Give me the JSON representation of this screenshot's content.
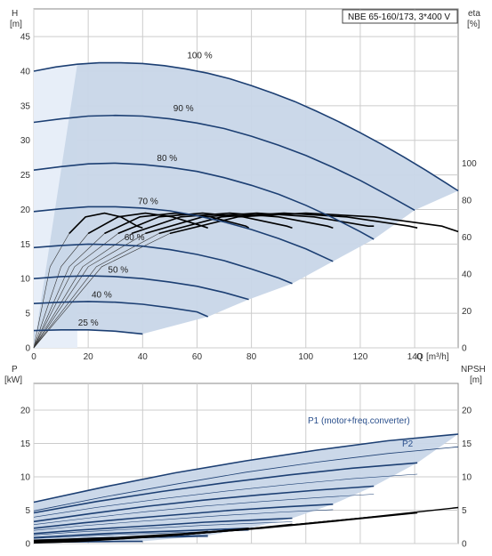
{
  "chart_data": [
    {
      "type": "line",
      "title": "NBE 65-160/173, 3*400 V",
      "ylabel": "H",
      "yunit": "[m]",
      "xlabel": "Q",
      "xunit": "[m³/h]",
      "y2label": "eta",
      "y2unit": "[%]",
      "xlim": [
        0,
        156
      ],
      "ylim": [
        0,
        49
      ],
      "y2lim": [
        0,
        183.75
      ],
      "xticks": [
        0,
        20,
        40,
        60,
        80,
        100,
        120,
        140
      ],
      "yticks": [
        0,
        5,
        10,
        15,
        20,
        25,
        30,
        35,
        40,
        45
      ],
      "y2ticks": [
        0,
        20,
        40,
        60,
        80,
        100
      ],
      "grid": true,
      "colors": {
        "curve": "#1c3f73",
        "region": "#c8d6e8",
        "region_light": "#e7eef8",
        "eta": "#000000",
        "grid": "#cccccc"
      },
      "series": [
        {
          "name": "100 %",
          "label_at": [
            61,
            41.5
          ],
          "x": [
            0,
            8,
            16,
            24,
            32,
            40,
            48,
            56,
            64,
            72,
            80,
            88,
            96,
            104,
            112,
            120,
            128,
            136,
            144,
            152,
            156
          ],
          "y": [
            40.0,
            40.6,
            41.0,
            41.2,
            41.2,
            41.1,
            40.8,
            40.3,
            39.7,
            38.9,
            37.9,
            36.8,
            35.6,
            34.2,
            32.7,
            31.1,
            29.4,
            27.6,
            25.7,
            23.7,
            22.7
          ]
        },
        {
          "name": "90 %",
          "label_at": [
            55,
            33.8
          ],
          "x": [
            0,
            10,
            20,
            30,
            40,
            50,
            60,
            70,
            80,
            90,
            100,
            110,
            120,
            130,
            140
          ],
          "y": [
            32.6,
            33.1,
            33.5,
            33.6,
            33.5,
            33.1,
            32.5,
            31.7,
            30.6,
            29.3,
            27.8,
            26.1,
            24.2,
            22.1,
            19.9
          ]
        },
        {
          "name": "80 %",
          "label_at": [
            49,
            26.6
          ],
          "x": [
            0,
            10,
            20,
            30,
            40,
            50,
            60,
            70,
            80,
            90,
            100,
            110,
            120,
            125
          ],
          "y": [
            25.7,
            26.2,
            26.6,
            26.7,
            26.5,
            26.1,
            25.5,
            24.6,
            23.5,
            22.2,
            20.6,
            18.8,
            16.8,
            15.7
          ]
        },
        {
          "name": "70 %",
          "label_at": [
            42,
            20.4
          ],
          "x": [
            0,
            10,
            20,
            30,
            40,
            50,
            60,
            70,
            80,
            90,
            100,
            110
          ],
          "y": [
            19.7,
            20.1,
            20.4,
            20.4,
            20.2,
            19.8,
            19.1,
            18.2,
            17.1,
            15.8,
            14.3,
            12.5
          ]
        },
        {
          "name": "60 %",
          "label_at": [
            37,
            15.2
          ],
          "x": [
            0,
            10,
            20,
            30,
            40,
            50,
            60,
            70,
            80,
            90,
            95
          ],
          "y": [
            14.5,
            14.8,
            15.0,
            14.9,
            14.7,
            14.2,
            13.5,
            12.6,
            11.4,
            10.1,
            9.3
          ]
        },
        {
          "name": "50 %",
          "label_at": [
            31,
            10.5
          ],
          "x": [
            0,
            10,
            20,
            30,
            40,
            50,
            60,
            70,
            79
          ],
          "y": [
            10.0,
            10.3,
            10.4,
            10.3,
            10.0,
            9.5,
            8.9,
            8.0,
            7.0
          ]
        },
        {
          "name": "40 %",
          "label_at": [
            25,
            6.9
          ],
          "x": [
            0,
            10,
            20,
            30,
            40,
            50,
            60,
            64
          ],
          "y": [
            6.4,
            6.6,
            6.7,
            6.6,
            6.3,
            5.8,
            5.2,
            4.5
          ]
        },
        {
          "name": "25 %",
          "label_at": [
            20,
            2.8
          ],
          "x": [
            0,
            10,
            20,
            30,
            40
          ],
          "y": [
            2.5,
            2.6,
            2.6,
            2.4,
            2.0
          ]
        }
      ],
      "eta_curves": [
        {
          "x": [
            0,
            25,
            50,
            75,
            100,
            125,
            150,
            156
          ],
          "eta": [
            0,
            44,
            62,
            71,
            73,
            71,
            66,
            63
          ]
        },
        {
          "x": [
            0,
            23,
            46,
            69,
            92,
            115,
            138,
            141
          ],
          "eta": [
            0,
            44,
            62,
            71,
            73,
            71,
            66,
            65
          ]
        },
        {
          "x": [
            0,
            20,
            41,
            62,
            82,
            103,
            123,
            125
          ],
          "eta": [
            0,
            44,
            62,
            71,
            73,
            71,
            66,
            66
          ]
        },
        {
          "x": [
            0,
            18,
            36,
            54,
            72,
            90,
            108,
            110
          ],
          "eta": [
            0,
            44,
            62,
            71,
            73,
            71,
            66,
            65
          ]
        },
        {
          "x": [
            0,
            15,
            31,
            46,
            62,
            77,
            93,
            95
          ],
          "eta": [
            0,
            44,
            62,
            71,
            73,
            71,
            66,
            65
          ]
        },
        {
          "x": [
            0,
            13,
            26,
            39,
            52,
            65,
            78,
            79
          ],
          "eta": [
            0,
            44,
            62,
            71,
            73,
            71,
            66,
            65
          ]
        },
        {
          "x": [
            0,
            10,
            20,
            31,
            41,
            51,
            62,
            64
          ],
          "eta": [
            0,
            44,
            62,
            71,
            73,
            71,
            66,
            65
          ]
        },
        {
          "x": [
            0,
            6,
            13,
            19,
            26,
            32,
            38,
            40
          ],
          "eta": [
            0,
            44,
            62,
            71,
            73,
            71,
            66,
            65
          ]
        }
      ]
    },
    {
      "type": "line",
      "ylabel": "P",
      "yunit": "[kW]",
      "y2label": "NPSH",
      "y2unit": "[m]",
      "xlim": [
        0,
        156
      ],
      "ylim": [
        0,
        24
      ],
      "y2lim": [
        0,
        24
      ],
      "yticks": [
        0,
        5,
        10,
        15,
        20
      ],
      "y2ticks": [
        0,
        5,
        10,
        15,
        20
      ],
      "grid": true,
      "series": [
        {
          "name": "P1 (motor+freq.converter)",
          "label": "P1 (motor+freq.converter)",
          "x": [
            0,
            26,
            52,
            78,
            104,
            130,
            156
          ],
          "y": [
            6.2,
            8.5,
            10.6,
            12.4,
            14.0,
            15.4,
            16.4
          ]
        },
        {
          "name": "P2",
          "label": "P2",
          "x": [
            0,
            26,
            52,
            78,
            104,
            130,
            156
          ],
          "y": [
            4.9,
            7.0,
            8.9,
            10.7,
            12.2,
            13.5,
            14.5
          ]
        },
        {
          "x": [
            0,
            23,
            47,
            70,
            94,
            117,
            141
          ],
          "y": [
            4.6,
            6.3,
            7.8,
            9.1,
            10.3,
            11.3,
            12.1
          ]
        },
        {
          "x": [
            0,
            21,
            42,
            62,
            83,
            104,
            125
          ],
          "y": [
            3.3,
            4.5,
            5.6,
            6.5,
            7.3,
            8.0,
            8.6
          ]
        },
        {
          "x": [
            0,
            18,
            37,
            55,
            73,
            92,
            110
          ],
          "y": [
            2.3,
            3.1,
            3.8,
            4.4,
            5.0,
            5.5,
            5.9
          ]
        },
        {
          "x": [
            0,
            16,
            32,
            48,
            63,
            79,
            95
          ],
          "y": [
            1.5,
            2.0,
            2.4,
            2.8,
            3.2,
            3.5,
            3.8
          ]
        },
        {
          "x": [
            0,
            13,
            26,
            39,
            53,
            66,
            79
          ],
          "y": [
            0.9,
            1.2,
            1.5,
            1.7,
            1.9,
            2.1,
            2.3
          ]
        },
        {
          "x": [
            0,
            11,
            21,
            32,
            43,
            53,
            64
          ],
          "y": [
            0.5,
            0.6,
            0.8,
            0.9,
            1.0,
            1.1,
            1.2
          ]
        },
        {
          "x": [
            0,
            7,
            13,
            20,
            27,
            33,
            40
          ],
          "y": [
            0.15,
            0.2,
            0.25,
            0.28,
            0.3,
            0.32,
            0.33
          ]
        }
      ],
      "npsh_curves": [
        {
          "x": [
            0,
            30,
            60,
            90,
            120,
            156
          ],
          "y": [
            0.5,
            0.9,
            1.6,
            2.6,
            3.8,
            5.4
          ]
        },
        {
          "x": [
            0,
            28,
            56,
            84,
            112,
            141
          ],
          "y": [
            0.4,
            0.8,
            1.4,
            2.3,
            3.4,
            4.6
          ]
        },
        {
          "x": [
            0,
            25,
            50,
            75,
            100,
            125
          ],
          "y": [
            0.4,
            0.7,
            1.2,
            2.0,
            3.0,
            4.0
          ]
        },
        {
          "x": [
            0,
            22,
            44,
            66,
            88,
            110
          ],
          "y": [
            0.3,
            0.6,
            1.0,
            1.7,
            2.5,
            3.4
          ]
        },
        {
          "x": [
            0,
            19,
            38,
            57,
            76,
            95
          ],
          "y": [
            0.3,
            0.5,
            0.9,
            1.4,
            2.1,
            2.9
          ]
        },
        {
          "x": [
            0,
            16,
            32,
            48,
            63,
            79
          ],
          "y": [
            0.2,
            0.4,
            0.7,
            1.1,
            1.7,
            2.3
          ]
        },
        {
          "x": [
            0,
            13,
            26,
            38,
            51,
            64
          ],
          "y": [
            0.2,
            0.3,
            0.6,
            0.9,
            1.3,
            1.8
          ]
        },
        {
          "x": [
            0,
            8,
            16,
            24,
            32,
            40
          ],
          "y": [
            0.1,
            0.2,
            0.3,
            0.5,
            0.7,
            1.0
          ]
        }
      ]
    }
  ]
}
